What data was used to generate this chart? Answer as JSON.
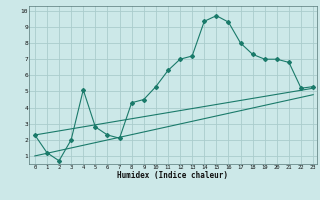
{
  "xlabel": "Humidex (Indice chaleur)",
  "bg_color": "#cce8e8",
  "grid_color": "#aacccc",
  "line_color": "#1a7a6a",
  "xticks": [
    0,
    1,
    2,
    3,
    4,
    5,
    6,
    7,
    8,
    9,
    10,
    11,
    12,
    13,
    14,
    15,
    16,
    17,
    18,
    19,
    20,
    21,
    22,
    23
  ],
  "yticks": [
    1,
    2,
    3,
    4,
    5,
    6,
    7,
    8,
    9,
    10
  ],
  "curve1_x": [
    0,
    1,
    2,
    3,
    4,
    5,
    6,
    7,
    8,
    9,
    10,
    11,
    12,
    13,
    14,
    15,
    16,
    17,
    18,
    19,
    20,
    21,
    22,
    23
  ],
  "curve1_y": [
    2.3,
    1.2,
    0.7,
    2.0,
    5.1,
    2.8,
    2.3,
    2.1,
    4.3,
    4.5,
    5.3,
    6.3,
    7.0,
    7.2,
    9.35,
    9.7,
    9.3,
    8.0,
    7.3,
    7.0,
    7.0,
    6.8,
    5.2,
    5.3
  ],
  "curve2_x": [
    0,
    23
  ],
  "curve2_y": [
    2.3,
    5.2
  ],
  "curve3_x": [
    0,
    23
  ],
  "curve3_y": [
    1.0,
    4.8
  ],
  "xlim": [
    -0.5,
    23.3
  ],
  "ylim": [
    0.5,
    10.3
  ]
}
